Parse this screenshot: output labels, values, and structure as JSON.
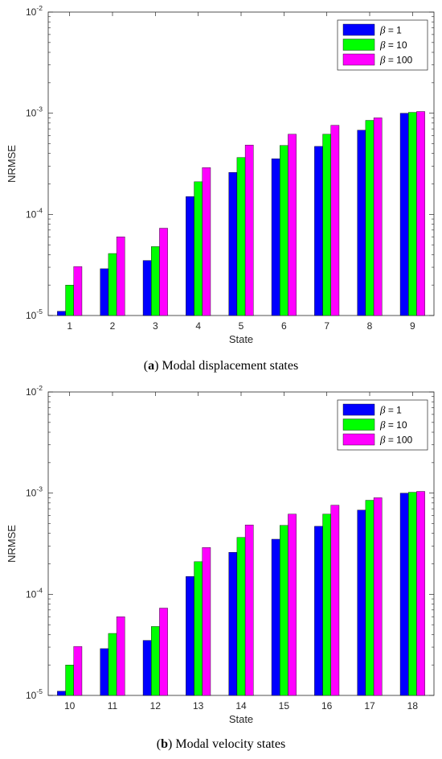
{
  "chart_data": [
    {
      "type": "bar",
      "caption_letter": "a",
      "caption_text": ") Modal displacement states",
      "categories": [
        "1",
        "2",
        "3",
        "4",
        "5",
        "6",
        "7",
        "8",
        "9"
      ],
      "series": [
        {
          "name": "β = 1",
          "name_symbol": "β",
          "name_suffix": " = 1",
          "color": "#0000ff",
          "values": [
            1.1e-05,
            2.9e-05,
            3.5e-05,
            0.00015,
            0.00026,
            0.000355,
            0.00047,
            0.00068,
            0.001
          ]
        },
        {
          "name": "β = 10",
          "name_symbol": "β",
          "name_suffix": " = 10",
          "color": "#00ff00",
          "values": [
            2e-05,
            4.1e-05,
            4.8e-05,
            0.00021,
            0.000365,
            0.00048,
            0.00062,
            0.00085,
            0.00102
          ]
        },
        {
          "name": "β = 100",
          "name_symbol": "β",
          "name_suffix": " = 100",
          "color": "#ff00ff",
          "values": [
            3.05e-05,
            6e-05,
            7.3e-05,
            0.00029,
            0.000485,
            0.00062,
            0.00076,
            0.0009,
            0.00104
          ]
        }
      ],
      "xlabel": "State",
      "ylabel": "NRMSE",
      "yscale": "log",
      "ylim": [
        1e-05,
        0.01
      ],
      "yticks": [
        {
          "base": "10",
          "exp": "-5"
        },
        {
          "base": "10",
          "exp": "-4"
        },
        {
          "base": "10",
          "exp": "-3"
        },
        {
          "base": "10",
          "exp": "-2"
        }
      ],
      "legend_position": "top-right",
      "grid": false
    },
    {
      "type": "bar",
      "caption_letter": "b",
      "caption_text": ") Modal velocity states",
      "categories": [
        "10",
        "11",
        "12",
        "13",
        "14",
        "15",
        "16",
        "17",
        "18"
      ],
      "series": [
        {
          "name": "β = 1",
          "name_symbol": "β",
          "name_suffix": " = 1",
          "color": "#0000ff",
          "values": [
            1.1e-05,
            2.9e-05,
            3.5e-05,
            0.00015,
            0.00026,
            0.00035,
            0.00047,
            0.00068,
            0.001
          ]
        },
        {
          "name": "β = 10",
          "name_symbol": "β",
          "name_suffix": " = 10",
          "color": "#00ff00",
          "values": [
            2e-05,
            4.1e-05,
            4.8e-05,
            0.00021,
            0.000365,
            0.00048,
            0.00062,
            0.00085,
            0.00102
          ]
        },
        {
          "name": "β = 100",
          "name_symbol": "β",
          "name_suffix": " = 100",
          "color": "#ff00ff",
          "values": [
            3.05e-05,
            6e-05,
            7.3e-05,
            0.00029,
            0.000485,
            0.00062,
            0.00076,
            0.0009,
            0.00104
          ]
        }
      ],
      "xlabel": "State",
      "ylabel": "NRMSE",
      "yscale": "log",
      "ylim": [
        1e-05,
        0.01
      ],
      "yticks": [
        {
          "base": "10",
          "exp": "-5"
        },
        {
          "base": "10",
          "exp": "-4"
        },
        {
          "base": "10",
          "exp": "-3"
        },
        {
          "base": "10",
          "exp": "-2"
        }
      ],
      "legend_position": "top-right",
      "grid": false
    }
  ]
}
